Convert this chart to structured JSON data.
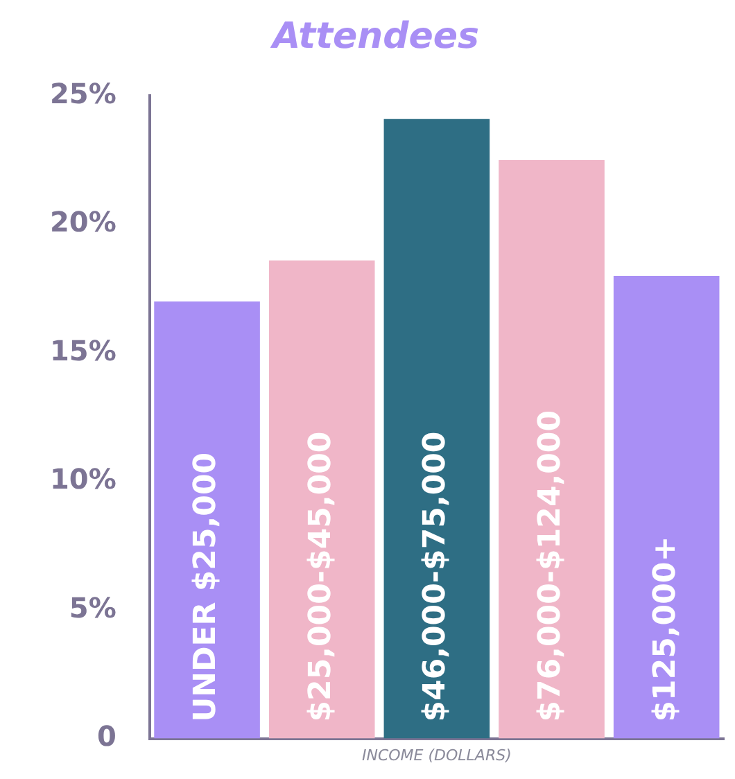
{
  "chart_data": {
    "type": "bar",
    "title": "Attendees",
    "xlabel": "INCOME (DOLLARS)",
    "categories": [
      "UNDER $25,000",
      "$25,000-$45,000",
      "$46,000-$75,000",
      "$76,000-$124,000",
      "$125,000+"
    ],
    "values": [
      17.0,
      18.6,
      24.1,
      22.5,
      18.0
    ],
    "colors": [
      "#a98ff5",
      "#f0b6c8",
      "#2e6e84",
      "#f0b6c8",
      "#a98ff5"
    ],
    "ylim": [
      0,
      25
    ],
    "yticks": [
      {
        "value": 0,
        "label": "0"
      },
      {
        "value": 5,
        "label": "5%"
      },
      {
        "value": 10,
        "label": "10%"
      },
      {
        "value": 15,
        "label": "15%"
      },
      {
        "value": 20,
        "label": "20%"
      },
      {
        "value": 25,
        "label": "25%"
      }
    ],
    "grid": false,
    "legend": false
  }
}
